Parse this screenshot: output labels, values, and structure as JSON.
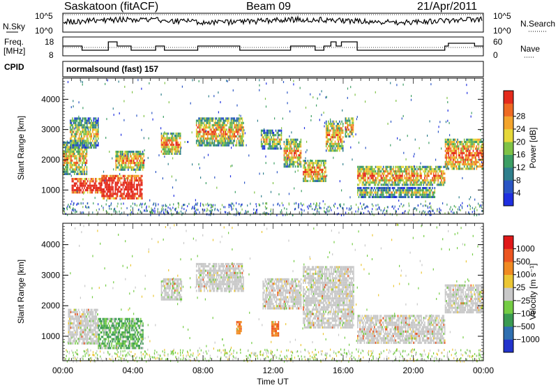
{
  "header": {
    "station": "Saskatoon (fitACF)",
    "beam": "Beam 09",
    "date": "21/Apr/2011"
  },
  "strip": {
    "nsky_label": "N.Sky",
    "nsky_ticks": [
      "10^5",
      "10^0"
    ],
    "nsearch_label": "N.Search",
    "nsearch_ticks": [
      "10^5",
      "10^0"
    ],
    "freq_label_1": "Freq.",
    "freq_label_2": "[MHz]",
    "freq_ticks": [
      "18",
      "8"
    ],
    "nave_label": "Nave",
    "nave_ticks": [
      "60",
      "0"
    ],
    "cpid_label": "CPID",
    "cpid_value": "normalsound (fast) 157"
  },
  "chart_data": [
    {
      "type": "heatmap",
      "name": "power",
      "ylabel": "Slant Range [km]",
      "yticks": [
        "1000",
        "2000",
        "3000",
        "4000"
      ],
      "ylim": [
        200,
        4700
      ],
      "xlim_hours": [
        0,
        24
      ],
      "colorbar": {
        "label": "Power [dB]",
        "ticks": [
          "4",
          "8",
          "12",
          "16",
          "20",
          "24",
          "28"
        ],
        "colors": [
          "#1f2fe0",
          "#2a55c4",
          "#2f7f8c",
          "#3d9e64",
          "#7fc246",
          "#e6d83a",
          "#f3a42c",
          "#ee6a22",
          "#e42a1c"
        ]
      },
      "regions": [
        {
          "t": [
            0.0,
            1.4
          ],
          "r": [
            1500,
            2600
          ],
          "level": 0.45
        },
        {
          "t": [
            0.5,
            2.2
          ],
          "r": [
            900,
            1400
          ],
          "level": 0.9
        },
        {
          "t": [
            2.2,
            4.5
          ],
          "r": [
            700,
            1500
          ],
          "level": 0.95
        },
        {
          "t": [
            0.4,
            2.0
          ],
          "r": [
            2400,
            3400
          ],
          "level": 0.35
        },
        {
          "t": [
            3.0,
            4.6
          ],
          "r": [
            1700,
            2300
          ],
          "level": 0.5
        },
        {
          "t": [
            5.6,
            6.7
          ],
          "r": [
            2200,
            2900
          ],
          "level": 0.55
        },
        {
          "t": [
            7.6,
            10.3
          ],
          "r": [
            2500,
            3400
          ],
          "level": 0.5
        },
        {
          "t": [
            11.3,
            12.5
          ],
          "r": [
            2400,
            3000
          ],
          "level": 0.35
        },
        {
          "t": [
            12.6,
            13.6
          ],
          "r": [
            1800,
            2700
          ],
          "level": 0.5
        },
        {
          "t": [
            13.7,
            15.0
          ],
          "r": [
            1300,
            2000
          ],
          "level": 0.55
        },
        {
          "t": [
            15.0,
            16.0
          ],
          "r": [
            2300,
            3300
          ],
          "level": 0.5
        },
        {
          "t": [
            16.1,
            16.6
          ],
          "r": [
            2800,
            3400
          ],
          "level": 0.55
        },
        {
          "t": [
            16.8,
            21.8
          ],
          "r": [
            1200,
            1800
          ],
          "level": 0.55
        },
        {
          "t": [
            16.8,
            21.2
          ],
          "r": [
            800,
            1100
          ],
          "level": 0.3
        },
        {
          "t": [
            21.8,
            24.0
          ],
          "r": [
            1700,
            2700
          ],
          "level": 0.6
        }
      ]
    },
    {
      "type": "heatmap",
      "name": "velocity",
      "ylabel": "Slant Range [km]",
      "yticks": [
        "1000",
        "2000",
        "3000",
        "4000"
      ],
      "ylim": [
        200,
        4700
      ],
      "xlabel": "Time UT",
      "xticks": [
        "00:00",
        "04:00",
        "08:00",
        "12:00",
        "16:00",
        "20:00",
        "00:00"
      ],
      "xlim_hours": [
        0,
        24
      ],
      "colorbar": {
        "label": "Velocity [m s⁻¹]",
        "ticks": [
          "1000",
          "500",
          "100",
          "25",
          "−25",
          "−100",
          "−500",
          "−1000"
        ],
        "colors": [
          "#2233cc",
          "#2f6fb0",
          "#3a9a52",
          "#74cc44",
          "#c8c8c8",
          "#ebc634",
          "#f08a22",
          "#ec5520",
          "#e01818"
        ]
      },
      "regions": [
        {
          "t": [
            0.3,
            2.0
          ],
          "r": [
            800,
            1900
          ],
          "level": 0.5
        },
        {
          "t": [
            2.0,
            4.6
          ],
          "r": [
            600,
            1600
          ],
          "level": 0.3
        },
        {
          "t": [
            5.6,
            6.8
          ],
          "r": [
            2200,
            2900
          ],
          "level": 0.5
        },
        {
          "t": [
            7.6,
            10.3
          ],
          "r": [
            2500,
            3400
          ],
          "level": 0.5
        },
        {
          "t": [
            11.4,
            13.6
          ],
          "r": [
            1900,
            2900
          ],
          "level": 0.5
        },
        {
          "t": [
            13.7,
            16.6
          ],
          "r": [
            1300,
            3300
          ],
          "level": 0.5
        },
        {
          "t": [
            16.8,
            21.8
          ],
          "r": [
            800,
            1700
          ],
          "level": 0.5
        },
        {
          "t": [
            21.8,
            24.0
          ],
          "r": [
            1800,
            2700
          ],
          "level": 0.5
        },
        {
          "t": [
            9.9,
            10.2
          ],
          "r": [
            1100,
            1500
          ],
          "level": 0.8
        },
        {
          "t": [
            11.9,
            12.3
          ],
          "r": [
            1000,
            1500
          ],
          "level": 0.8
        }
      ]
    }
  ]
}
